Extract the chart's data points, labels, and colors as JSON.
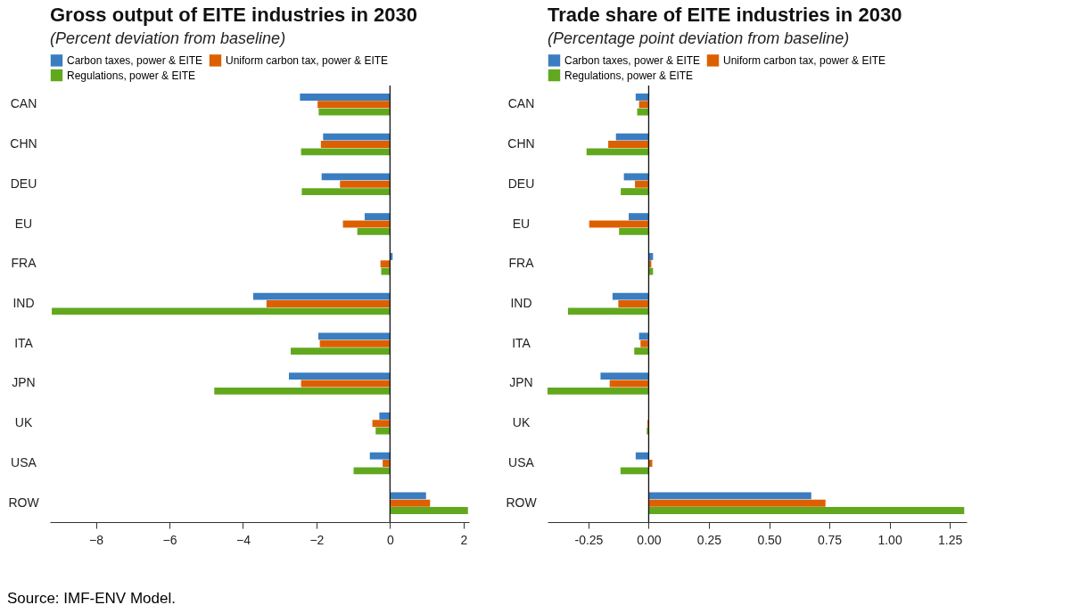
{
  "chart_data": [
    {
      "type": "bar",
      "orientation": "horizontal",
      "title": "Gross output of EITE industries in 2030",
      "subtitle": "(Percent deviation from baseline)",
      "categories": [
        "CAN",
        "CHN",
        "DEU",
        "EU",
        "FRA",
        "IND",
        "ITA",
        "JPN",
        "UK",
        "USA",
        "ROW"
      ],
      "series": [
        {
          "name": "Carbon taxes, power & EITE",
          "color": "#3a7dc0",
          "values": [
            -2.45,
            -1.82,
            -1.86,
            -0.69,
            0.07,
            -3.72,
            -1.95,
            -2.75,
            -0.29,
            -0.55,
            0.98
          ]
        },
        {
          "name": "Uniform carbon tax, power & EITE",
          "color": "#dd6000",
          "values": [
            -1.97,
            -1.88,
            -1.36,
            -1.28,
            -0.26,
            -3.36,
            -1.91,
            -2.42,
            -0.48,
            -0.2,
            1.09
          ]
        },
        {
          "name": "Regulations, power & EITE",
          "color": "#62a81e",
          "values": [
            -1.94,
            -2.42,
            -2.4,
            -0.89,
            -0.24,
            -9.2,
            -2.7,
            -4.78,
            -0.39,
            -0.99,
            2.12
          ]
        }
      ],
      "xlim": [
        -9.25,
        2.15
      ],
      "xticks": [
        -8,
        -6,
        -4,
        -2,
        0,
        2
      ],
      "ref_lines": [
        {
          "axis": "x",
          "value": 0
        }
      ],
      "grid": false,
      "legend": "top",
      "annotations": [
        "Source: IMF-ENV Model."
      ]
    },
    {
      "type": "bar",
      "orientation": "horizontal",
      "title": "Trade share of EITE industries in 2030",
      "subtitle": "(Percentage point deviation from baseline)",
      "categories": [
        "CAN",
        "CHN",
        "DEU",
        "EU",
        "FRA",
        "IND",
        "ITA",
        "JPN",
        "UK",
        "USA",
        "ROW"
      ],
      "series": [
        {
          "name": "Carbon taxes, power & EITE",
          "color": "#3a7dc0",
          "values": [
            -0.054,
            -0.136,
            -0.103,
            -0.083,
            0.018,
            -0.15,
            -0.04,
            -0.2,
            0,
            -0.054,
            0.675
          ]
        },
        {
          "name": "Uniform carbon tax, power & EITE",
          "color": "#dd6000",
          "values": [
            -0.04,
            -0.168,
            -0.057,
            -0.247,
            0.011,
            -0.126,
            -0.034,
            -0.162,
            -0.005,
            0.015,
            0.734
          ]
        },
        {
          "name": "Regulations, power & EITE",
          "color": "#62a81e",
          "values": [
            -0.048,
            -0.258,
            -0.116,
            -0.123,
            0.018,
            -0.335,
            -0.06,
            -0.42,
            -0.008,
            -0.117,
            1.31
          ]
        }
      ],
      "xlim": [
        -0.42,
        1.32
      ],
      "xticks": [
        {
          "value": -0.25,
          "label": "-0.25"
        },
        {
          "value": 0,
          "label": "0.00"
        },
        {
          "value": 0.25,
          "label": "0.25"
        },
        {
          "value": 0.5,
          "label": "0.50"
        },
        {
          "value": 0.75,
          "label": "0.75"
        },
        {
          "value": 1,
          "label": "1.00"
        },
        {
          "value": 1.25,
          "label": "1.25"
        }
      ],
      "ref_lines": [
        {
          "axis": "x",
          "value": 0
        }
      ],
      "grid": false,
      "legend": "top"
    }
  ]
}
